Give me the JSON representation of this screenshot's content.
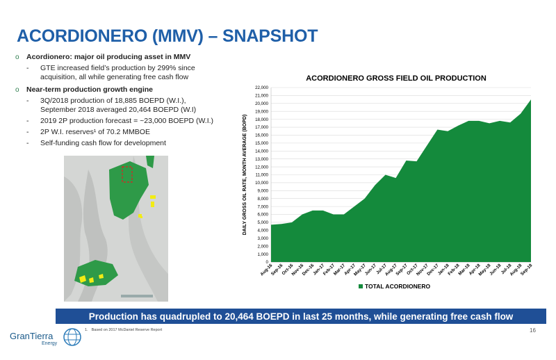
{
  "page": {
    "title": "ACORDIONERO (MMV) – SNAPSHOT",
    "bullets": [
      {
        "heading": "Acordionero: major oil producing asset in MMV",
        "sub": [
          [
            "GTE increased field’s production by 299% since",
            "acquisition, all while generating free cash flow"
          ]
        ]
      },
      {
        "heading": "Near-term production growth engine",
        "sub": [
          [
            "3Q/2018 production of 18,885 BOEPD (W.I.),",
            "September 2018 averaged 20,464 BOEPD (W.I)"
          ],
          [
            "2019 2P production forecast = ~23,000 BOEPD (W.I.)"
          ],
          [
            "2P W.I. reserves¹ of 70.2 MMBOE"
          ],
          [
            "Self-funding cash flow for development"
          ]
        ]
      }
    ],
    "bullet_marker": "o",
    "sub_marker": "-",
    "banner": "Production has quadrupled to 20,464 BOEPD in last 25 months, while generating free cash flow",
    "footnote_num": "1.",
    "footnote": "Based on 2017 McDaniel Reserve Report",
    "page_number": "16",
    "logo_name": "GranTierra",
    "logo_sub": "Energy"
  },
  "colors": {
    "title": "#1f5fa8",
    "banner": "#1f4f96",
    "area": "#148a3c",
    "bullet": "#2e7d4f",
    "map_green": "#2e9a48",
    "map_yellow": "#f2ec14",
    "map_red": "#e02020"
  },
  "chart_data": {
    "type": "area",
    "title": "ACORDIONERO GROSS FIELD OIL PRODUCTION",
    "ylabel": "DAILY GROSS OIL RATE, MONTH AVERAGE (BOPD)",
    "xlabel": "",
    "ylim": [
      0,
      22000
    ],
    "yticks": [
      "0",
      "1,000",
      "2,000",
      "3,000",
      "4,000",
      "5,000",
      "6,000",
      "7,000",
      "8,000",
      "9,000",
      "10,000",
      "11,000",
      "12,000",
      "13,000",
      "14,000",
      "15,000",
      "16,000",
      "17,000",
      "18,000",
      "19,000",
      "20,000",
      "21,000",
      "22,000"
    ],
    "grid": true,
    "legend": "bottom",
    "categories": [
      "Aug-16",
      "Sep-16",
      "Oct-16",
      "Nov-16",
      "Dec-16",
      "Jan-17",
      "Feb-17",
      "Mar-17",
      "Apr-17",
      "May-17",
      "Jun-17",
      "Jul-17",
      "Aug-17",
      "Sep-17",
      "Oct-17",
      "Nov-17",
      "Dec-17",
      "Jan-18",
      "Feb-18",
      "Mar-18",
      "Apr-18",
      "May-18",
      "Jun-18",
      "Jul-18",
      "Aug-18",
      "Sep-18"
    ],
    "series": [
      {
        "name": "TOTAL ACORDIONERO",
        "values": [
          4700,
          4800,
          5000,
          6000,
          6500,
          6500,
          6000,
          6000,
          7000,
          8000,
          9700,
          11000,
          10600,
          12800,
          12700,
          14700,
          16700,
          16500,
          17200,
          17800,
          17800,
          17500,
          17800,
          17600,
          18700,
          20500
        ]
      }
    ]
  }
}
